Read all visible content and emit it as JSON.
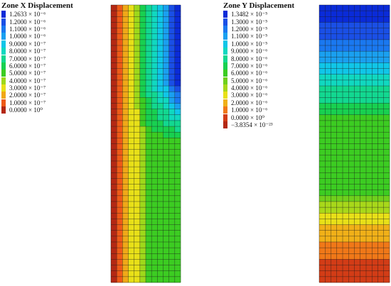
{
  "legend_x": {
    "title": "Zone X Displacement",
    "entries": [
      {
        "label": "1.2633 × 10⁻⁶",
        "color": "#0a2bd8"
      },
      {
        "label": "1.2000 × 10⁻⁶",
        "color": "#1a4fe6"
      },
      {
        "label": "1.1000 × 10⁻⁶",
        "color": "#1a78f0"
      },
      {
        "label": "1.0000 × 10⁻⁶",
        "color": "#1aa0f0"
      },
      {
        "label": "9.0000 × 10⁻⁷",
        "color": "#10c6e8"
      },
      {
        "label": "8.0000 × 10⁻⁷",
        "color": "#10d8c0"
      },
      {
        "label": "7.0000 × 10⁻⁷",
        "color": "#12d890"
      },
      {
        "label": "6.0000 × 10⁻⁷",
        "color": "#18d050"
      },
      {
        "label": "5.0000 × 10⁻⁷",
        "color": "#3ccc22"
      },
      {
        "label": "4.0000 × 10⁻⁷",
        "color": "#9ed81a"
      },
      {
        "label": "3.0000 × 10⁻⁷",
        "color": "#e8e018"
      },
      {
        "label": "2.0000 × 10⁻⁷",
        "color": "#f0a818"
      },
      {
        "label": "1.0000 × 10⁻⁷",
        "color": "#ee5a18"
      },
      {
        "label": "0.0000 × 10⁰",
        "color": "#b42814"
      }
    ]
  },
  "legend_y": {
    "title": "Zone Y Displacement",
    "entries": [
      {
        "label": "1.3482 × 10⁻⁵",
        "color": "#0a2bd8"
      },
      {
        "label": "1.3000 × 10⁻⁵",
        "color": "#1a4fe6"
      },
      {
        "label": "1.2000 × 10⁻⁵",
        "color": "#1a78f0"
      },
      {
        "label": "1.1000 × 10⁻⁵",
        "color": "#1aa0f0"
      },
      {
        "label": "1.0000 × 10⁻⁵",
        "color": "#10c6e8"
      },
      {
        "label": "9.0000 × 10⁻⁶",
        "color": "#10d8c0"
      },
      {
        "label": "8.0000 × 10⁻⁶",
        "color": "#12d890"
      },
      {
        "label": "7.0000 × 10⁻⁶",
        "color": "#18d050"
      },
      {
        "label": "6.0000 × 10⁻⁶",
        "color": "#3ccc22"
      },
      {
        "label": "5.0000 × 10⁻⁶",
        "color": "#70d01c"
      },
      {
        "label": "4.0000 × 10⁻⁶",
        "color": "#a8d81a"
      },
      {
        "label": "3.0000 × 10⁻⁶",
        "color": "#e8e018"
      },
      {
        "label": "2.0000 × 10⁻⁶",
        "color": "#f0b018"
      },
      {
        "label": "1.0000 × 10⁻⁶",
        "color": "#f07818"
      },
      {
        "label": "0.0000 × 10⁰",
        "color": "#d23c16"
      },
      {
        "label": "−3.8354 × 10⁻²³",
        "color": "#b42814"
      }
    ]
  },
  "mesh_color": "#1a1a1a"
}
